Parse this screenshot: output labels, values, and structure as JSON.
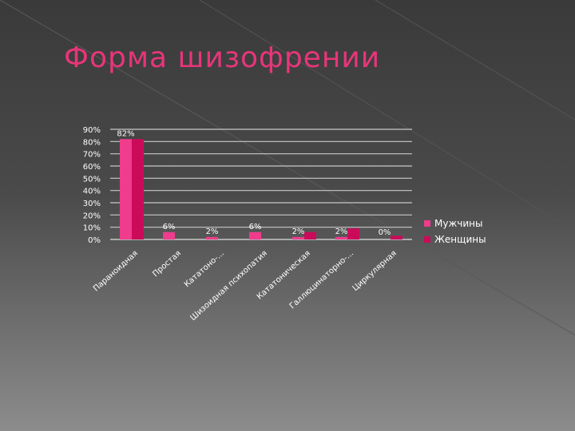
{
  "slide": {
    "title": "Форма шизофрении",
    "title_color": "#e8357a"
  },
  "chart_data": {
    "type": "bar",
    "title": "",
    "xlabel": "",
    "ylabel": "",
    "categories": [
      "Параноидная",
      "Простая",
      "Кататоно-...",
      "Шизоидная психопатия",
      "Кататоническая",
      "Галлюцинаторно-...",
      "Циркулярная"
    ],
    "series": [
      {
        "name": "Мужчины",
        "color": "#f03c8c",
        "values": [
          82,
          6,
          2,
          6,
          2,
          2,
          0
        ]
      },
      {
        "name": "Женщины",
        "color": "#cc0a5a",
        "values": [
          82,
          0,
          0,
          0,
          6,
          9,
          3
        ]
      }
    ],
    "data_labels": [
      "82%",
      "6%",
      "2%",
      "6%",
      "2%",
      "2%",
      "0%"
    ],
    "y_ticks": [
      "0%",
      "10%",
      "20%",
      "30%",
      "40%",
      "50%",
      "60%",
      "70%",
      "80%",
      "90%"
    ],
    "ylim": [
      0,
      90
    ],
    "grid": true,
    "legend_position": "right"
  }
}
